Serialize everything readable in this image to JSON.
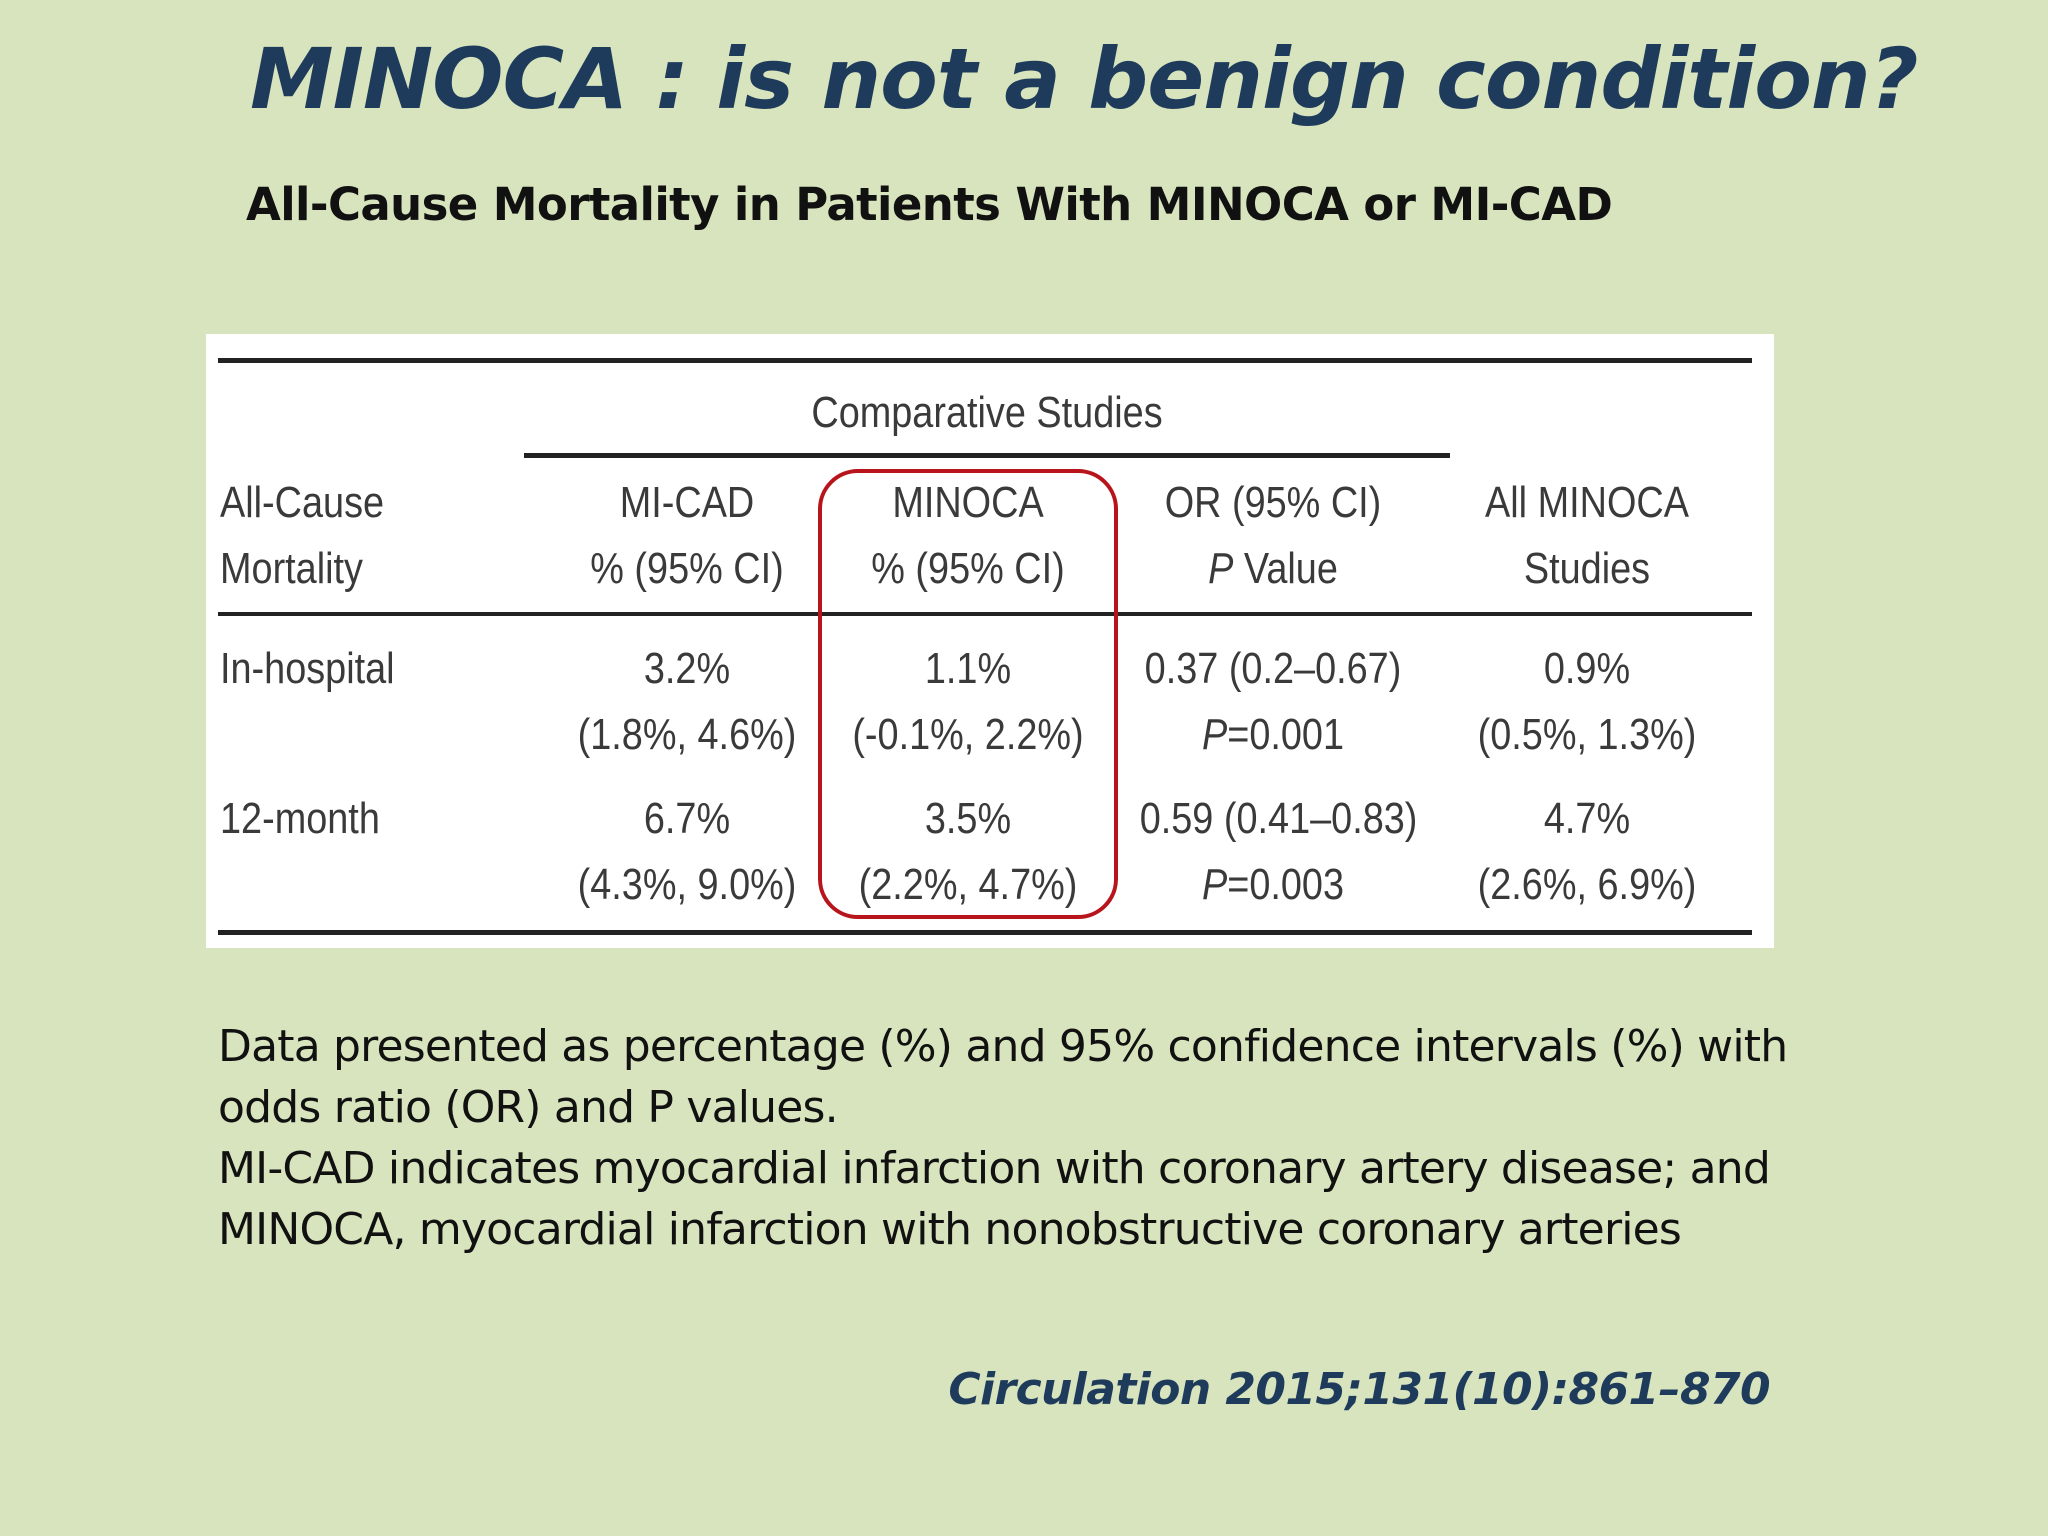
{
  "slide": {
    "title": "MINOCA : is not a benign condition?",
    "subtitle": "All-Cause Mortality in Patients With MINOCA or MI-CAD",
    "notes": [
      "Data presented as percentage (%) and 95% confidence intervals (%) with",
      "odds ratio (OR) and P values.",
      "MI-CAD indicates myocardial infarction with coronary artery disease; and",
      "MINOCA, myocardial infarction with nonobstructive coronary arteries"
    ],
    "citation": "Circulation 2015;131(10):861–870"
  },
  "table": {
    "group_header": "Comparative Studies",
    "headers": {
      "col0": [
        "All-Cause",
        "Mortality"
      ],
      "col1": [
        "MI-CAD",
        "% (95% CI)"
      ],
      "col2": [
        "MINOCA",
        "% (95% CI)"
      ],
      "col3": [
        "OR (95% CI)",
        "P",
        " Value"
      ],
      "col4": [
        "All MINOCA",
        "Studies"
      ]
    },
    "rows": [
      {
        "label": "In-hospital",
        "micad": [
          "3.2%",
          "(1.8%, 4.6%)"
        ],
        "minoca": [
          "1.1%",
          "(-0.1%, 2.2%)"
        ],
        "or": [
          "0.37 (0.2–0.67)",
          "P",
          "=0.001"
        ],
        "all": [
          "0.9%",
          "(0.5%, 1.3%)"
        ]
      },
      {
        "label": "12-month",
        "micad": [
          "6.7%",
          "(4.3%, 9.0%)"
        ],
        "minoca": [
          "3.5%",
          "(2.2%, 4.7%)"
        ],
        "or": [
          "0.59 (0.41–0.83)",
          "P",
          "=0.003"
        ],
        "all": [
          "4.7%",
          "(2.6%, 6.9%)"
        ]
      }
    ],
    "highlight_color": "#b8141c"
  }
}
